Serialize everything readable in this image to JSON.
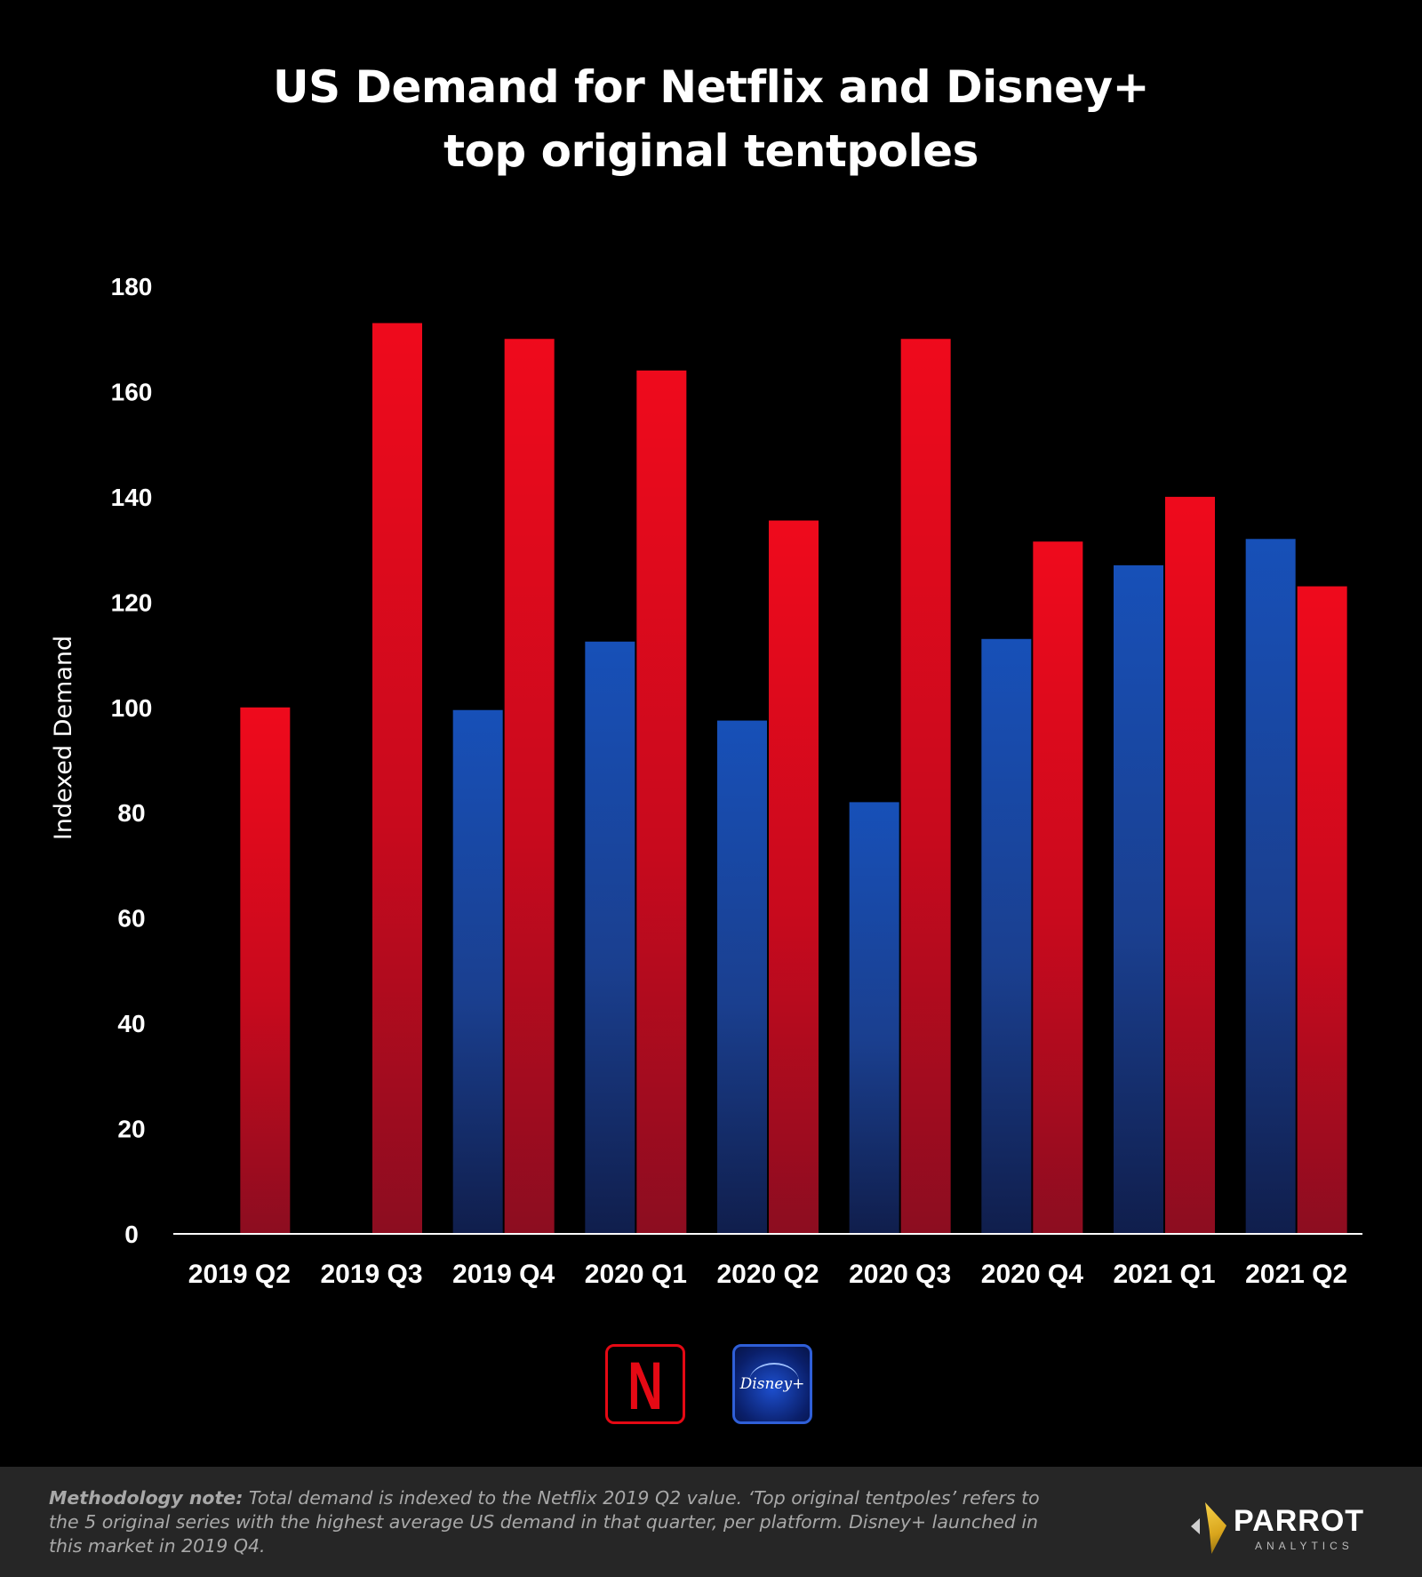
{
  "title": {
    "line1": "US Demand for Netflix and Disney+",
    "line2": "top original tentpoles"
  },
  "colors": {
    "netflix": "#e50914",
    "disney": "#1a4fb0",
    "background": "#000000"
  },
  "legend": {
    "netflix_icon": "netflix-logo",
    "netflix_letter": "N",
    "disney_icon": "disney-plus-logo",
    "disney_text": "Disney+"
  },
  "chart_data": {
    "type": "bar",
    "title": "US Demand for Netflix and Disney+ top original tentpoles",
    "xlabel": "",
    "ylabel": "Indexed Demand",
    "ylim": [
      0,
      180
    ],
    "yticks": [
      0,
      20,
      40,
      60,
      80,
      100,
      120,
      140,
      160,
      180
    ],
    "grid": false,
    "legend_placement": "bottom-center",
    "categories": [
      "2019 Q2",
      "2019 Q3",
      "2019 Q4",
      "2020 Q1",
      "2020 Q2",
      "2020 Q3",
      "2020 Q4",
      "2021 Q1",
      "2021 Q2"
    ],
    "series": [
      {
        "color": "#1a4fb0",
        "values": [
          null,
          null,
          99.5,
          112.5,
          97.5,
          82,
          113,
          127,
          132
        ]
      },
      {
        "color": "#e50914",
        "values": [
          100,
          173,
          170,
          164,
          135.5,
          170,
          131.5,
          140,
          123
        ]
      }
    ]
  },
  "footer": {
    "note_label": "Methodology note:",
    "note_text": " Total demand is indexed to the Netflix 2019 Q2 value. ‘Top original tentpoles’ refers to the 5 original series with the highest average US demand in that quarter, per platform. Disney+ launched in this market in 2019 Q4.",
    "brand": "PARROT",
    "brand_sub": "ANALYTICS"
  }
}
